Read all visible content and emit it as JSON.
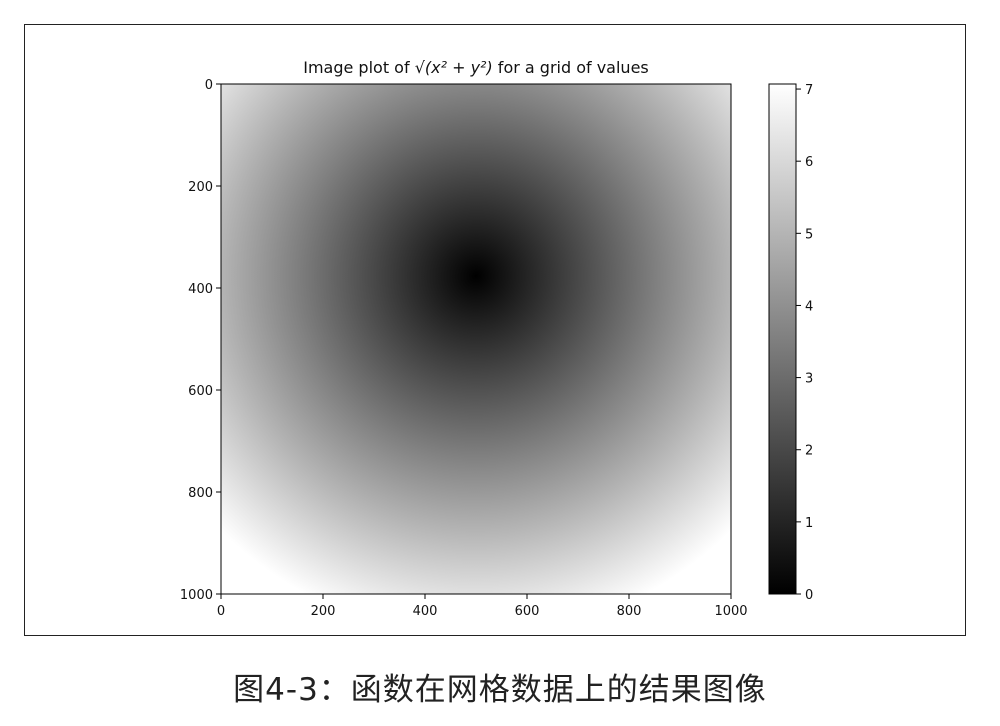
{
  "chart_data": {
    "type": "heatmap",
    "title_prefix": "Image plot of ",
    "title_math": "√(x² + y²)",
    "title_suffix": " for a grid of values",
    "x_ticks": [
      "0",
      "200",
      "400",
      "600",
      "800",
      "1000"
    ],
    "y_ticks": [
      "0",
      "200",
      "400",
      "600",
      "800",
      "1000"
    ],
    "xlim": [
      0,
      1000
    ],
    "ylim": [
      0,
      1000
    ],
    "y_axis_inverted": true,
    "colormap": "gray",
    "value_range": [
      0,
      7.07
    ],
    "colorbar_ticks": [
      "0",
      "1",
      "2",
      "3",
      "4",
      "5",
      "6",
      "7"
    ],
    "grid": false,
    "function": "z = sqrt(x^2 + y^2)",
    "domain": {
      "x": [
        -5,
        5
      ],
      "y": [
        -5,
        5
      ]
    },
    "samples": [
      {
        "x": 0,
        "y": 0,
        "value": 7.07
      },
      {
        "x": 500,
        "y": 500,
        "value": 0.0
      },
      {
        "x": 1000,
        "y": 0,
        "value": 7.07
      },
      {
        "x": 0,
        "y": 1000,
        "value": 7.07
      },
      {
        "x": 1000,
        "y": 1000,
        "value": 7.07
      },
      {
        "x": 500,
        "y": 0,
        "value": 5.0
      },
      {
        "x": 0,
        "y": 500,
        "value": 5.0
      }
    ]
  },
  "caption": "图4-3：函数在网格数据上的结果图像"
}
